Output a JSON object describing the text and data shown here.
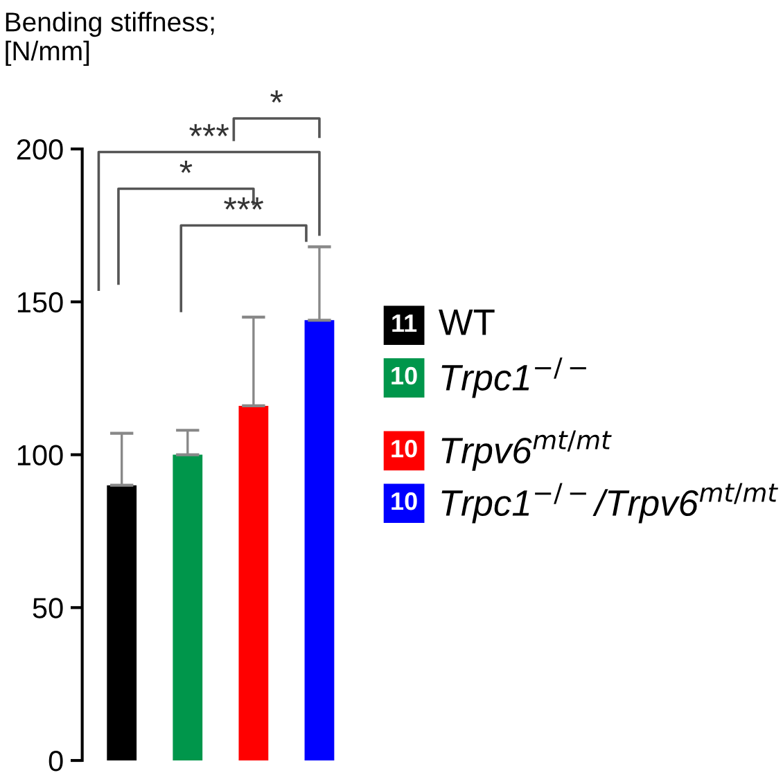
{
  "chart_data": {
    "type": "bar",
    "ylabel": "Bending stiffness;\n[N/mm]",
    "categories": [
      null,
      null,
      null,
      null
    ],
    "series": [
      {
        "name": "WT",
        "color": "#000000",
        "values": [
          90,
          null,
          null,
          null
        ],
        "errors": [
          [
            90,
            107
          ],
          null,
          null,
          null
        ]
      },
      {
        "name": "Trpc1$^{−/−}$",
        "color": "#00964b",
        "values": [
          null,
          100,
          null,
          null
        ],
        "errors": [
          null,
          [
            100,
            108
          ],
          null,
          null
        ]
      },
      {
        "name": "Trpv6$^{mt/mt}$",
        "color": "#ff0000",
        "values": [
          null,
          null,
          116,
          null
        ],
        "errors": [
          null,
          null,
          [
            116,
            145
          ],
          null
        ]
      },
      {
        "name": "Trpc1$^{−/−}$/Trpv6$^{mt/mt}$",
        "color": "#0000ff",
        "values": [
          null,
          null,
          null,
          144
        ],
        "errors": [
          null,
          null,
          null,
          [
            144,
            168
          ]
        ]
      }
    ],
    "annotations": [
      "11",
      "10",
      "10",
      "10",
      "*",
      "***",
      "*",
      "***"
    ],
    "ylim": [
      0,
      200
    ],
    "yticks": [
      0,
      50,
      100,
      150,
      200
    ],
    "grid": false,
    "legend": "right"
  }
}
